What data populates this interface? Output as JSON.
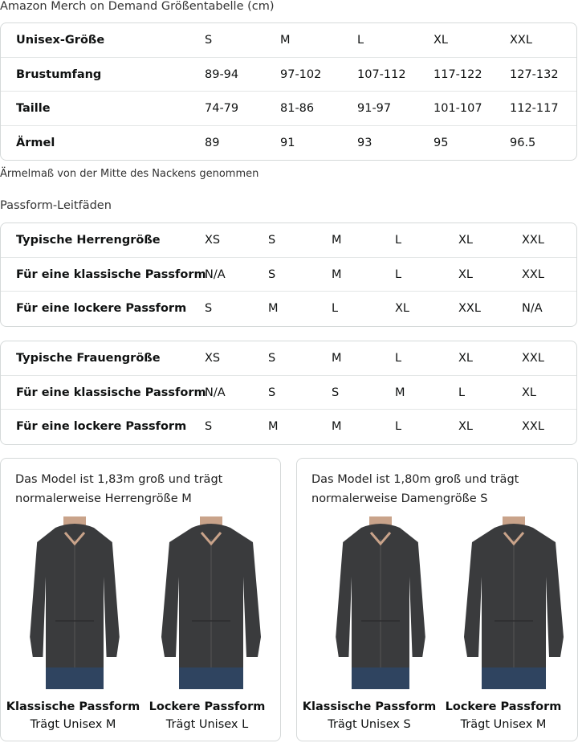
{
  "title": "Amazon Merch on Demand Größentabelle (cm)",
  "unisex_table": {
    "rows": [
      [
        "Unisex-Größe",
        "S",
        "M",
        "L",
        "XL",
        "XXL"
      ],
      [
        "Brustumfang",
        "89-94",
        "97-102",
        "107-112",
        "117-122",
        "127-132"
      ],
      [
        "Taille",
        "74-79",
        "81-86",
        "91-97",
        "101-107",
        "112-117"
      ],
      [
        "Ärmel",
        "89",
        "91",
        "93",
        "95",
        "96.5"
      ]
    ]
  },
  "note": "Ärmelmaß von der Mitte des Nackens genommen",
  "fit_heading": "Passform-Leitfäden",
  "men_table": {
    "rows": [
      [
        "Typische Herrengröße",
        "XS",
        "S",
        "M",
        "L",
        "XL",
        "XXL"
      ],
      [
        "Für eine klassische Passform",
        "N/A",
        "S",
        "M",
        "L",
        "XL",
        "XXL"
      ],
      [
        "Für eine lockere Passform",
        "S",
        "M",
        "L",
        "XL",
        "XXL",
        "N/A"
      ]
    ]
  },
  "women_table": {
    "rows": [
      [
        "Typische Frauengröße",
        "XS",
        "S",
        "M",
        "L",
        "XL",
        "XXL"
      ],
      [
        "Für eine klassische Passform",
        "N/A",
        "S",
        "S",
        "M",
        "L",
        "XL"
      ],
      [
        "Für eine lockere Passform",
        "S",
        "M",
        "M",
        "L",
        "XL",
        "XXL"
      ]
    ]
  },
  "cards": [
    {
      "line1": "Das Model ist 1,83m groß und trägt",
      "line2": "normalerweise Herrengröße M",
      "figures": [
        {
          "fit": "Klassische Passform",
          "size": "Trägt Unisex M"
        },
        {
          "fit": "Lockere Passform",
          "size": "Trägt Unisex L"
        }
      ]
    },
    {
      "line1": "Das Model ist 1,80m groß und trägt",
      "line2": "normalerweise Damengröße S",
      "figures": [
        {
          "fit": "Klassische Passform",
          "size": "Trägt Unisex S"
        },
        {
          "fit": "Lockere Passform",
          "size": "Trägt Unisex M"
        }
      ]
    }
  ],
  "colors": {
    "hoodie": "#3a3b3d",
    "jeans": "#2f4460",
    "border": "#d5d9d9"
  }
}
